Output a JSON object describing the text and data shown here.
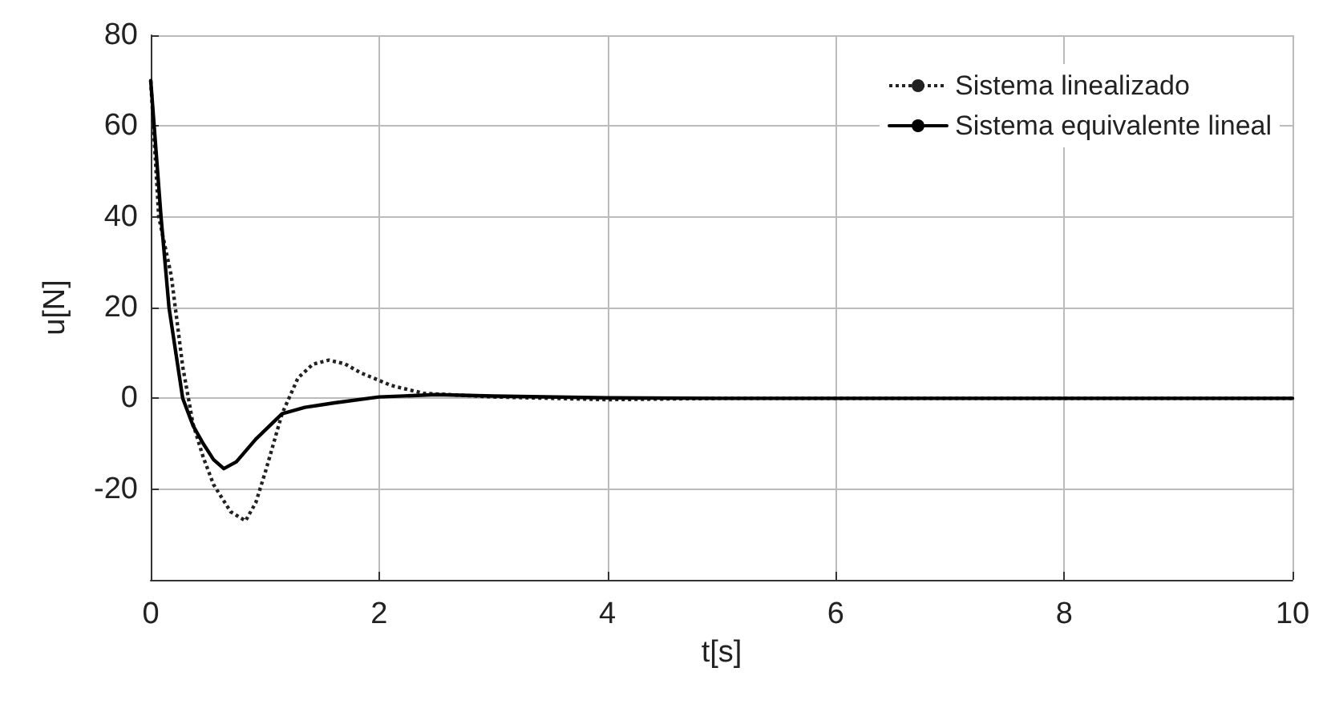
{
  "chart_data": {
    "type": "line",
    "xlabel": "t[s]",
    "ylabel": "u[N]",
    "xlim": [
      0,
      10
    ],
    "xticks": [
      0,
      2,
      4,
      6,
      8,
      10
    ],
    "ylim": [
      -40,
      80
    ],
    "yticks": [
      -20,
      0,
      20,
      40,
      60,
      80
    ],
    "grid": true,
    "legend": "top right",
    "marker": "none",
    "series": [
      {
        "name": "Sistema linealizado",
        "color": "#222222",
        "line_style": "dotted",
        "x": [
          0,
          0.07,
          0.18,
          0.28,
          0.37,
          0.46,
          0.55,
          0.7,
          0.83,
          0.92,
          1.01,
          1.15,
          1.29,
          1.42,
          1.56,
          1.7,
          1.84,
          2.11,
          2.39,
          3,
          4,
          5,
          6,
          8,
          10
        ],
        "values": [
          70,
          40,
          27,
          7,
          -5.6,
          -13,
          -19,
          -25,
          -27,
          -23,
          -15.7,
          -3.4,
          4.5,
          7.5,
          8.4,
          7.6,
          5.6,
          2.8,
          1.1,
          0.3,
          -0.3,
          0,
          0,
          0,
          0
        ]
      },
      {
        "name": "Sistema equivalente lineal",
        "color": "#000000",
        "line_style": "solid",
        "x": [
          0,
          0.09,
          0.16,
          0.28,
          0.37,
          0.46,
          0.55,
          0.64,
          0.75,
          0.92,
          1.15,
          1.35,
          1.61,
          2,
          2.5,
          3,
          4,
          5,
          6,
          8,
          10
        ],
        "values": [
          70,
          40,
          20,
          0,
          -6,
          -10,
          -13.5,
          -15.5,
          -14,
          -9,
          -3.4,
          -2,
          -1,
          0.3,
          0.8,
          0.5,
          0.1,
          0,
          0,
          0,
          0
        ]
      }
    ]
  }
}
